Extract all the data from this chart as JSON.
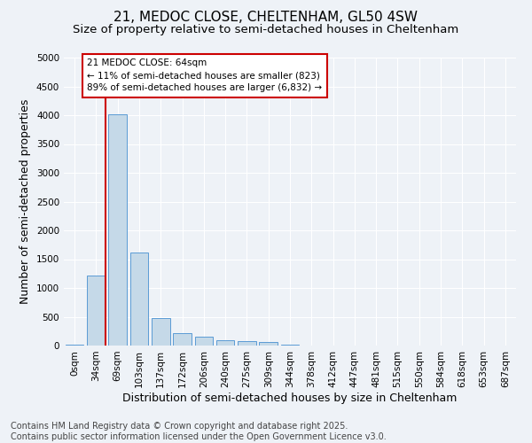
{
  "title1": "21, MEDOC CLOSE, CHELTENHAM, GL50 4SW",
  "title2": "Size of property relative to semi-detached houses in Cheltenham",
  "xlabel": "Distribution of semi-detached houses by size in Cheltenham",
  "ylabel": "Number of semi-detached properties",
  "bar_color": "#c5d9e8",
  "bar_edge_color": "#5b9bd5",
  "categories": [
    "0sqm",
    "34sqm",
    "69sqm",
    "103sqm",
    "137sqm",
    "172sqm",
    "206sqm",
    "240sqm",
    "275sqm",
    "309sqm",
    "344sqm",
    "378sqm",
    "412sqm",
    "447sqm",
    "481sqm",
    "515sqm",
    "550sqm",
    "584sqm",
    "618sqm",
    "653sqm",
    "687sqm"
  ],
  "values": [
    10,
    1220,
    4020,
    1620,
    480,
    220,
    150,
    100,
    70,
    55,
    20,
    0,
    0,
    0,
    0,
    0,
    0,
    0,
    0,
    0,
    0
  ],
  "ylim": [
    0,
    5000
  ],
  "yticks": [
    0,
    500,
    1000,
    1500,
    2000,
    2500,
    3000,
    3500,
    4000,
    4500,
    5000
  ],
  "annotation_line1": "21 MEDOC CLOSE: 64sqm",
  "annotation_line2": "← 11% of semi-detached houses are smaller (823)",
  "annotation_line3": "89% of semi-detached houses are larger (6,832) →",
  "annotation_box_color": "#ffffff",
  "annotation_box_edge": "#cc0000",
  "vline_color": "#cc0000",
  "vline_x": 1.43,
  "footer1": "Contains HM Land Registry data © Crown copyright and database right 2025.",
  "footer2": "Contains public sector information licensed under the Open Government Licence v3.0.",
  "background_color": "#eef2f7",
  "grid_color": "#ffffff",
  "title_fontsize": 11,
  "subtitle_fontsize": 9.5,
  "axis_label_fontsize": 9,
  "tick_fontsize": 7.5,
  "footer_fontsize": 7
}
